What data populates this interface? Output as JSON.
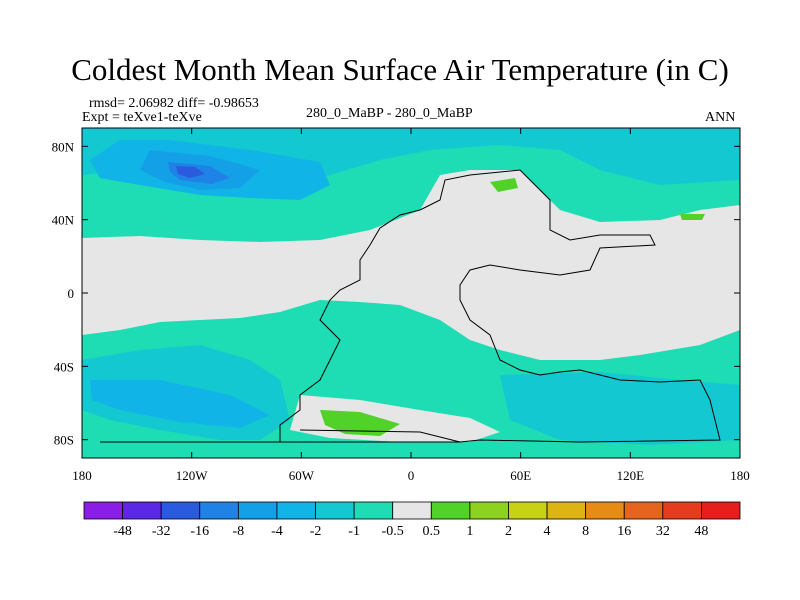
{
  "chart_data": {
    "type": "heatmap",
    "title": "Coldest Month Mean Surface Air Temperature (in C)",
    "stats": "rmsd= 2.06982 diff= -0.98653",
    "experiment": "Expt = teXve1-teXve",
    "subtitle": "280_0_MaBP - 280_0_MaBP",
    "season": "ANN",
    "x_axis": {
      "range": [
        -180,
        180
      ],
      "tick_labels": [
        "180",
        "120W",
        "60W",
        "0",
        "60E",
        "120E",
        "180"
      ]
    },
    "y_axis": {
      "range": [
        -90,
        90
      ],
      "tick_labels": [
        "80N",
        "40N",
        "0",
        "40S",
        "80S"
      ]
    },
    "colorbar": {
      "levels": [
        "-48",
        "-32",
        "-16",
        "-8",
        "-4",
        "-2",
        "-1",
        "-0.5",
        "0.5",
        "1",
        "2",
        "4",
        "8",
        "16",
        "32",
        "48"
      ],
      "colors": [
        "#8a1de6",
        "#5a28e6",
        "#2a5ade",
        "#1e82e6",
        "#14a0e6",
        "#10b4e6",
        "#14c8d2",
        "#1edcb4",
        "#e6e6e6",
        "#50d228",
        "#8cd21e",
        "#c8d214",
        "#dcb414",
        "#e68c14",
        "#e6641e",
        "#e63c1e",
        "#e61e1e"
      ]
    }
  }
}
